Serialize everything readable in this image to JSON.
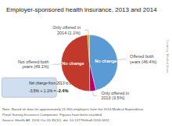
{
  "chart_data": {
    "type": "pie",
    "title": "Employer-sponsored health insurance, 2013 and 2014",
    "categories": [
      "Offered both\nyears (46.4%)",
      "Only offered in\n2013 (3.5%)",
      "Not offered both\nyears (49.1%)",
      "Only offered in\n2014 (1.1%)"
    ],
    "values": [
      46.4,
      3.5,
      49.1,
      1.1
    ],
    "colors": [
      "#5b9bd5",
      "#b5006a",
      "#c0392b",
      "#c8a800"
    ],
    "slice_texts": [
      "No change",
      null,
      "No change",
      null
    ],
    "net_change": {
      "title": "Net change from 2013 to 2014",
      "detail": "-3.5% + 1.1% = ",
      "value": "-2.4%"
    },
    "notes": [
      "Note: Based on data for approximately 21,900 employers from the 2014 Medical Expenditure",
      "Panel Survey-Insurance Component. Figures have been rounded.",
      "Source: Health Aff. 2016 Oct 20;35(11). doi: 10.1377/hlthaff.2016.0631"
    ],
    "sidebar": "Courtesy: Medical News"
  }
}
